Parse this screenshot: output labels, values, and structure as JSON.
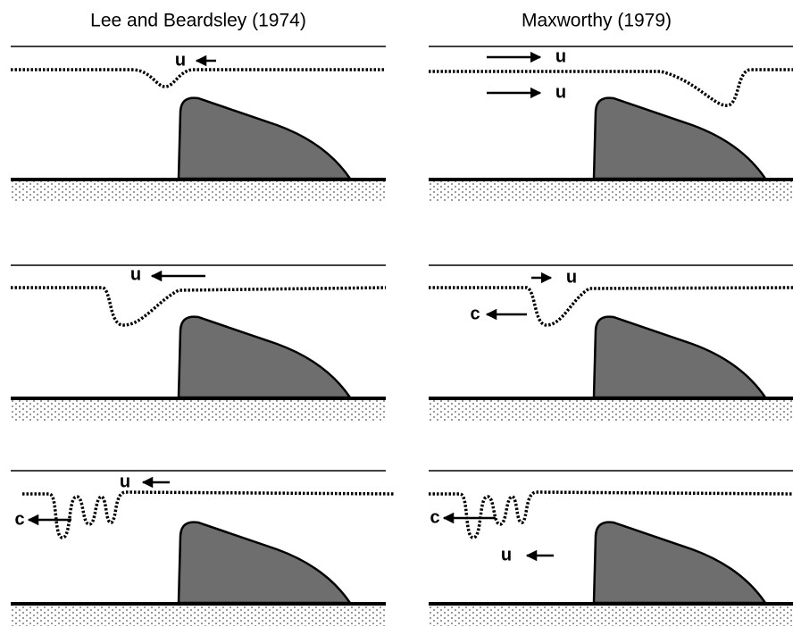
{
  "columns": [
    {
      "title": "Lee and Beardsley (1974)",
      "panels": [
        {
          "labels": [
            "u"
          ]
        },
        {
          "labels": [
            "u"
          ]
        },
        {
          "labels": [
            "u",
            "c"
          ]
        }
      ]
    },
    {
      "title": "Maxworthy (1979)",
      "panels": [
        {
          "labels": [
            "u",
            "u"
          ]
        },
        {
          "labels": [
            "u",
            "c"
          ]
        },
        {
          "labels": [
            "c",
            "u"
          ]
        }
      ]
    }
  ]
}
